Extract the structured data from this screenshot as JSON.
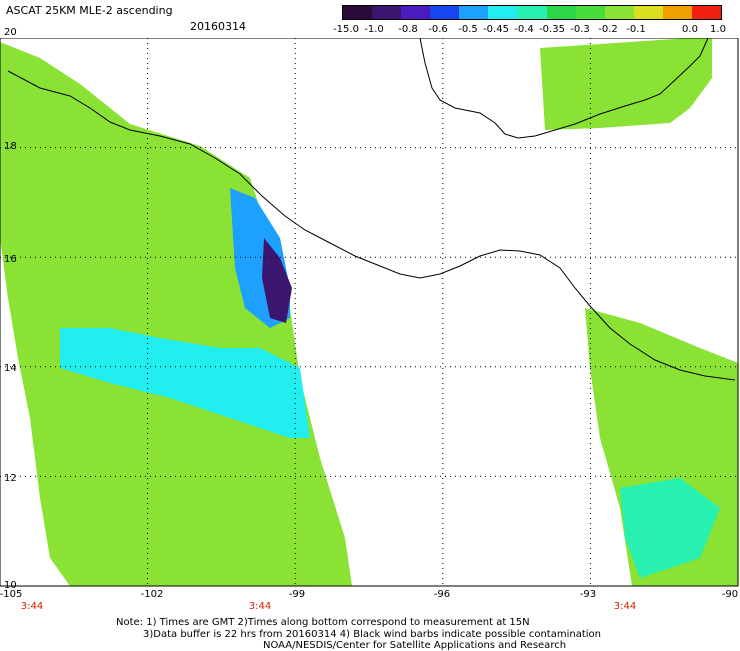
{
  "header": {
    "title": "ASCAT 25KM MLE-2 ascending",
    "date": "20160314"
  },
  "colorbar": {
    "labels": [
      "-15.0",
      "-1.0",
      "-0.8",
      "-0.6",
      "-0.5",
      "-0.45",
      "-0.4",
      "-0.35",
      "-0.3",
      "-0.2",
      "-0.1",
      "0.0",
      "1.0"
    ],
    "colors": [
      "#2a0a38",
      "#3a1670",
      "#4a1cc0",
      "#1846f0",
      "#1ea0ff",
      "#22eef0",
      "#28f0b0",
      "#2cd84a",
      "#48dc3c",
      "#8ae234",
      "#d8e020",
      "#f0a000",
      "#f02010"
    ]
  },
  "axes": {
    "y_labels": [
      "20",
      "18",
      "16",
      "14",
      "12",
      "10"
    ],
    "x_labels": [
      "-105",
      "-102",
      "-99",
      "-96",
      "-93",
      "-90"
    ],
    "time_labels": [
      "3:44",
      "3:44",
      "3:44"
    ]
  },
  "chart_data": {
    "type": "heatmap",
    "title": "ASCAT 25KM MLE-2 ascending",
    "date": "20160314",
    "lon_range": [
      -105,
      -90
    ],
    "lat_range": [
      10,
      20
    ],
    "x_ticks": [
      -105,
      -102,
      -99,
      -96,
      -93,
      -90
    ],
    "y_ticks": [
      10,
      12,
      14,
      16,
      18,
      20
    ],
    "color_scale": [
      -15.0,
      -1.0,
      -0.8,
      -0.6,
      -0.5,
      -0.45,
      -0.4,
      -0.35,
      -0.3,
      -0.2,
      -0.1,
      0.0,
      1.0
    ],
    "grid": true,
    "pass_times": [
      {
        "lon": -105,
        "time": "3:44"
      },
      {
        "lon": -99,
        "time": "3:44"
      },
      {
        "lon": -92.2,
        "time": "3:44"
      }
    ]
  },
  "footer": {
    "note1": "Note: 1) Times are GMT 2)Times along bottom correspond to measurement at 15N",
    "note2": "3)Data buffer is 22 hrs from 20160314 4) Black wind barbs indicate possible contamination",
    "note3": "NOAA/NESDIS/Center for Satellite Applications and Research"
  }
}
